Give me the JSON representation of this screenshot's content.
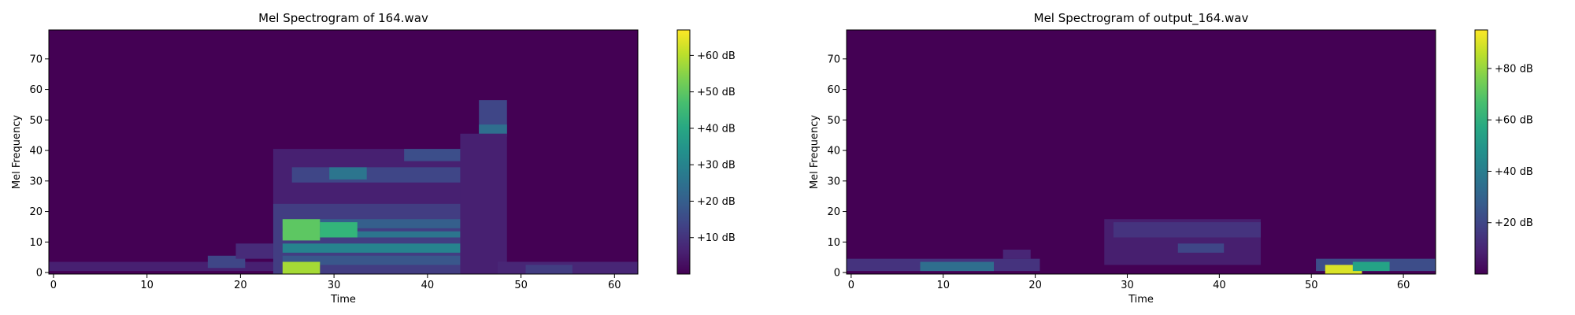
{
  "chart_data": [
    {
      "type": "heatmap",
      "title": "Mel Spectrogram of 164.wav",
      "xlabel": "Time",
      "ylabel": "Mel Frequency",
      "xlim": [
        -0.5,
        62.5
      ],
      "ylim": [
        -0.5,
        79.5
      ],
      "xticks": [
        0,
        10,
        20,
        30,
        40,
        50,
        60
      ],
      "yticks": [
        0,
        10,
        20,
        30,
        40,
        50,
        60,
        70
      ],
      "colorbar": {
        "range": [
          0,
          67
        ],
        "ticks": [
          10,
          20,
          30,
          40,
          50,
          60
        ],
        "tick_labels": [
          "+10 dB",
          "+20 dB",
          "+30 dB",
          "+40 dB",
          "+50 dB",
          "+60 dB"
        ]
      },
      "colormap": "viridis",
      "blobs": [
        {
          "t0": 0,
          "t1": 24,
          "m0": 1,
          "m1": 3,
          "v": 6
        },
        {
          "t0": 17,
          "t1": 20,
          "m0": 2,
          "m1": 5,
          "v": 14
        },
        {
          "t0": 20,
          "t1": 24,
          "m0": 5,
          "m1": 9,
          "v": 8
        },
        {
          "t0": 24,
          "t1": 45,
          "m0": 0,
          "m1": 40,
          "v": 6
        },
        {
          "t0": 24,
          "t1": 44,
          "m0": 0,
          "m1": 22,
          "v": 12
        },
        {
          "t0": 25,
          "t1": 44,
          "m0": 7,
          "m1": 9,
          "v": 30
        },
        {
          "t0": 25,
          "t1": 44,
          "m0": 12,
          "m1": 13,
          "v": 26
        },
        {
          "t0": 25,
          "t1": 44,
          "m0": 15,
          "m1": 17,
          "v": 20
        },
        {
          "t0": 25,
          "t1": 44,
          "m0": 3,
          "m1": 5,
          "v": 18
        },
        {
          "t0": 25,
          "t1": 28,
          "m0": 11,
          "m1": 17,
          "v": 50
        },
        {
          "t0": 25,
          "t1": 28,
          "m0": 0,
          "m1": 3,
          "v": 58
        },
        {
          "t0": 29,
          "t1": 32,
          "m0": 12,
          "m1": 16,
          "v": 44
        },
        {
          "t0": 26,
          "t1": 44,
          "m0": 30,
          "m1": 34,
          "v": 14
        },
        {
          "t0": 30,
          "t1": 33,
          "m0": 31,
          "m1": 34,
          "v": 26
        },
        {
          "t0": 38,
          "t1": 44,
          "m0": 37,
          "m1": 40,
          "v": 16
        },
        {
          "t0": 46,
          "t1": 48,
          "m0": 45,
          "m1": 56,
          "v": 14
        },
        {
          "t0": 46,
          "t1": 48,
          "m0": 46,
          "m1": 48,
          "v": 24
        },
        {
          "t0": 44,
          "t1": 48,
          "m0": 0,
          "m1": 45,
          "v": 6
        },
        {
          "t0": 48,
          "t1": 62,
          "m0": 0,
          "m1": 3,
          "v": 7
        },
        {
          "t0": 51,
          "t1": 55,
          "m0": 0,
          "m1": 2,
          "v": 12
        }
      ]
    },
    {
      "type": "heatmap",
      "title": "Mel Spectrogram of output_164.wav",
      "xlabel": "Time",
      "ylabel": "Mel Frequency",
      "xlim": [
        -0.5,
        63.5
      ],
      "ylim": [
        -0.5,
        79.5
      ],
      "xticks": [
        0,
        10,
        20,
        30,
        40,
        50,
        60
      ],
      "yticks": [
        0,
        10,
        20,
        30,
        40,
        50,
        60,
        70
      ],
      "colorbar": {
        "range": [
          0,
          95
        ],
        "ticks": [
          20,
          40,
          60,
          80
        ],
        "tick_labels": [
          "+20 dB",
          "+40 dB",
          "+60 dB",
          "+80 dB"
        ]
      },
      "colormap": "viridis",
      "blobs": [
        {
          "t0": 0,
          "t1": 20,
          "m0": 1,
          "m1": 4,
          "v": 14
        },
        {
          "t0": 8,
          "t1": 15,
          "m0": 1,
          "m1": 3,
          "v": 34
        },
        {
          "t0": 17,
          "t1": 19,
          "m0": 5,
          "m1": 7,
          "v": 10
        },
        {
          "t0": 28,
          "t1": 44,
          "m0": 3,
          "m1": 17,
          "v": 8
        },
        {
          "t0": 29,
          "t1": 44,
          "m0": 12,
          "m1": 16,
          "v": 14
        },
        {
          "t0": 36,
          "t1": 40,
          "m0": 7,
          "m1": 9,
          "v": 20
        },
        {
          "t0": 51,
          "t1": 63,
          "m0": 1,
          "m1": 4,
          "v": 22
        },
        {
          "t0": 52,
          "t1": 55,
          "m0": 0,
          "m1": 2,
          "v": 90
        },
        {
          "t0": 55,
          "t1": 58,
          "m0": 1,
          "m1": 3,
          "v": 55
        }
      ]
    }
  ]
}
